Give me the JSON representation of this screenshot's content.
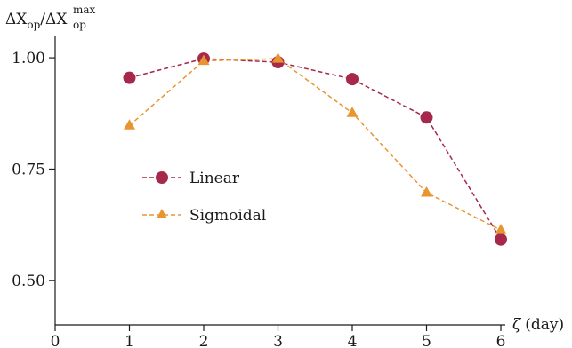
{
  "chart_data": {
    "type": "line",
    "ylabel": {
      "delta": "Δ",
      "var": "X",
      "sub": "op",
      "slash": "/",
      "sup": "max"
    },
    "xlabel": {
      "symbol": "ζ",
      "unit": "(day)"
    },
    "xlim": [
      0,
      6
    ],
    "ylim": [
      0.4,
      1.05
    ],
    "x_ticks": [
      0,
      1,
      2,
      3,
      4,
      5,
      6
    ],
    "x_tick_labels": [
      "0",
      "1",
      "2",
      "3",
      "4",
      "5",
      "6"
    ],
    "y_ticks": [
      0.5,
      0.75,
      1.0
    ],
    "y_tick_labels": [
      "0.50",
      "0.75",
      "1.00"
    ],
    "grid": false,
    "legend_position": "center-left",
    "series": [
      {
        "name": "Linear",
        "marker": "circle",
        "line_style": "dashed",
        "color": "#a6294b",
        "x": [
          1,
          2,
          3,
          4,
          5,
          6
        ],
        "y": [
          0.955,
          0.998,
          0.99,
          0.952,
          0.866,
          0.592
        ]
      },
      {
        "name": "Sigmoidal",
        "marker": "triangle",
        "line_style": "dashed",
        "color": "#e8952f",
        "x": [
          1,
          2,
          3,
          4,
          5,
          6
        ],
        "y": [
          0.848,
          0.993,
          0.998,
          0.876,
          0.697,
          0.613
        ]
      }
    ]
  }
}
